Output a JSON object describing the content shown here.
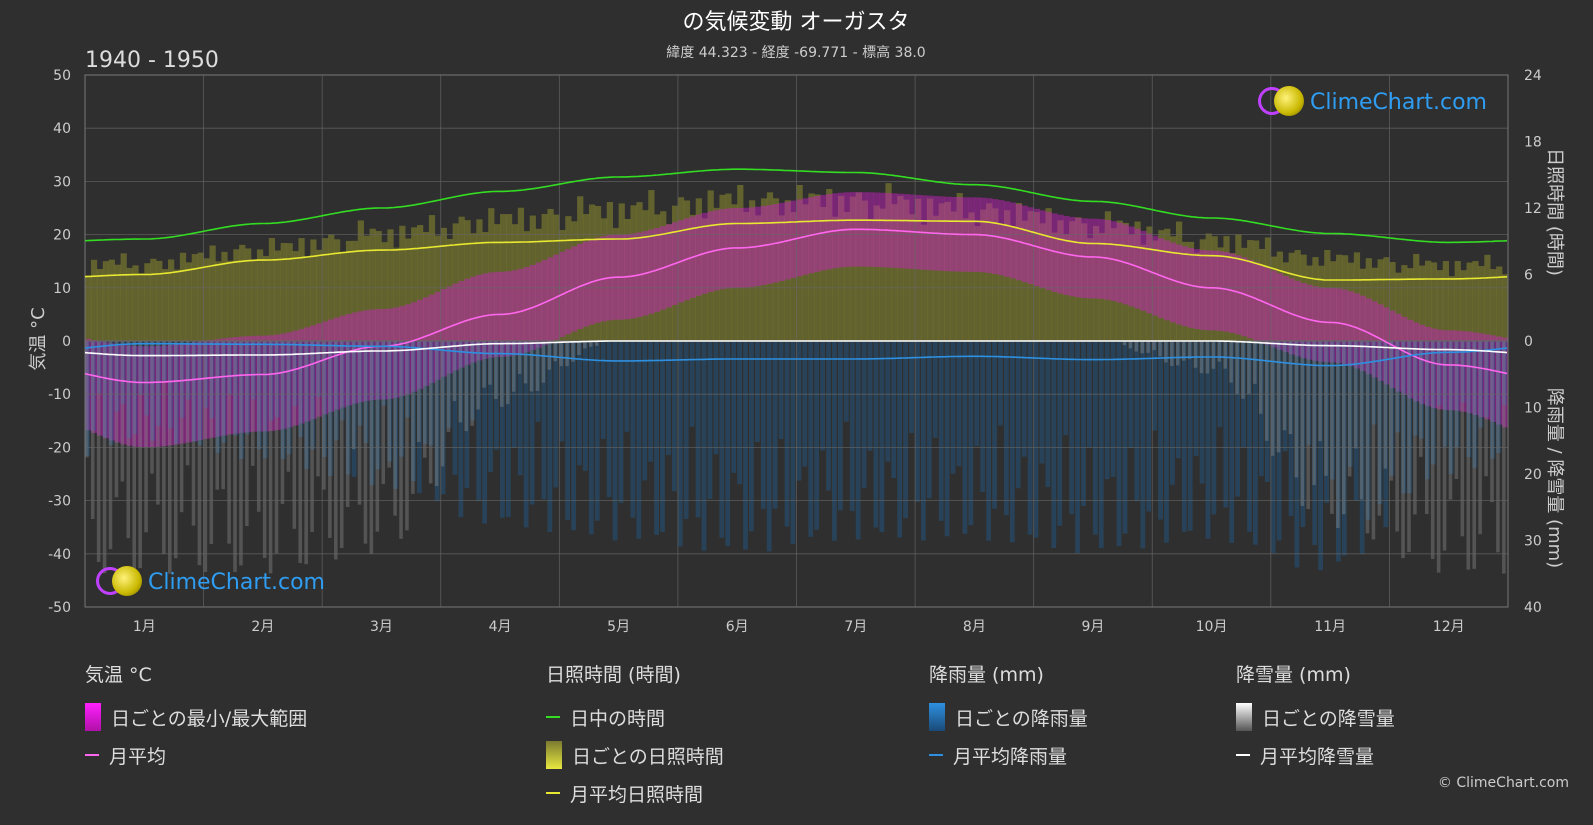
{
  "header": {
    "title": "の気候変動 オーガスタ",
    "subtitle": "緯度 44.323 - 経度 -69.771 - 標高 38.0",
    "period": "1940 - 1950"
  },
  "axes": {
    "left_title": "気温 °C",
    "right_top_title": "日照時間 (時間)",
    "right_bottom_title": "降雨量 / 降雪量 (mm)",
    "left_ticks": [
      "50",
      "40",
      "30",
      "20",
      "10",
      "0",
      "-10",
      "-20",
      "-30",
      "-40",
      "-50"
    ],
    "right_top_ticks": [
      "24",
      "18",
      "12",
      "6",
      "0"
    ],
    "right_bottom_ticks": [
      "10",
      "20",
      "30",
      "40"
    ],
    "months": [
      "1月",
      "2月",
      "3月",
      "4月",
      "5月",
      "6月",
      "7月",
      "8月",
      "9月",
      "10月",
      "11月",
      "12月"
    ]
  },
  "legend": {
    "temp": {
      "heading": "気温 °C",
      "range": "日ごとの最小/最大範囲",
      "mean": "月平均"
    },
    "sun": {
      "heading": "日照時間 (時間)",
      "daylight": "日中の時間",
      "daily": "日ごとの日照時間",
      "mean": "月平均日照時間"
    },
    "rain": {
      "heading": "降雨量 (mm)",
      "daily": "日ごとの降雨量",
      "mean": "月平均降雨量"
    },
    "snow": {
      "heading": "降雪量 (mm)",
      "daily": "日ごとの降雪量",
      "mean": "月平均降雪量"
    }
  },
  "logo": {
    "text": "ClimeChart.com"
  },
  "copyright": "© ClimeChart.com",
  "colors": {
    "background": "#2f2f2f",
    "grid": "#555555",
    "daylight": "#33dd22",
    "sunshine_mean": "#e8e830",
    "temp_mean": "#ff66ee",
    "rain_mean": "#2e90e0",
    "snow_mean": "#ffffff",
    "temp_range": "#d020c8",
    "sunshine_bar": "#8c8c30",
    "rain_bar": "#1e6aa8",
    "snow_bar": "#9a9a9a"
  },
  "chart_data": {
    "type": "area",
    "categories": [
      "1月",
      "2月",
      "3月",
      "4月",
      "5月",
      "6月",
      "7月",
      "8月",
      "9月",
      "10月",
      "11月",
      "12月"
    ],
    "temp_ylim": [
      -50,
      50
    ],
    "sun_ylim": [
      0,
      24
    ],
    "precip_ylim": [
      0,
      40
    ],
    "series": [
      {
        "name": "日中の時間",
        "axis": "sun",
        "values": [
          9.2,
          10.6,
          12.0,
          13.5,
          14.8,
          15.5,
          15.2,
          14.1,
          12.6,
          11.1,
          9.7,
          8.9
        ]
      },
      {
        "name": "月平均日照時間",
        "axis": "sun",
        "values": [
          6.0,
          7.3,
          8.2,
          8.9,
          9.2,
          10.6,
          10.9,
          10.8,
          8.8,
          7.7,
          5.5,
          5.6
        ]
      },
      {
        "name": "月平均",
        "axis": "temp",
        "values": [
          -7.8,
          -6.3,
          -1.0,
          5.0,
          12.0,
          17.5,
          21.0,
          20.0,
          15.8,
          10.0,
          3.5,
          -4.5
        ]
      },
      {
        "name": "月平均降雨量",
        "axis": "precip",
        "values": [
          0.4,
          0.5,
          0.8,
          1.9,
          3.0,
          2.7,
          2.7,
          2.3,
          2.8,
          2.4,
          3.7,
          1.7
        ]
      },
      {
        "name": "月平均降雪量",
        "axis": "precip",
        "values": [
          2.2,
          2.1,
          1.5,
          0.4,
          0.0,
          0.0,
          0.0,
          0.0,
          0.0,
          0.0,
          0.7,
          1.3
        ]
      }
    ],
    "daily_temp_range": {
      "min": [
        -20,
        -17,
        -11,
        -3,
        4,
        10,
        14,
        13,
        8,
        2,
        -4,
        -13
      ],
      "max": [
        -1,
        1,
        6,
        13,
        20,
        25,
        28,
        27,
        23,
        17,
        10,
        2
      ]
    },
    "daily_sunshine_max": [
      8.0,
      9.5,
      11.0,
      12.5,
      13.5,
      14.5,
      14.5,
      13.5,
      12.0,
      10.5,
      8.5,
      7.8
    ],
    "daily_rain_max": [
      15,
      18,
      22,
      28,
      30,
      32,
      30,
      30,
      32,
      30,
      35,
      20
    ],
    "daily_snow_max": [
      35,
      35,
      32,
      10,
      0,
      0,
      0,
      0,
      0,
      5,
      28,
      35
    ]
  }
}
